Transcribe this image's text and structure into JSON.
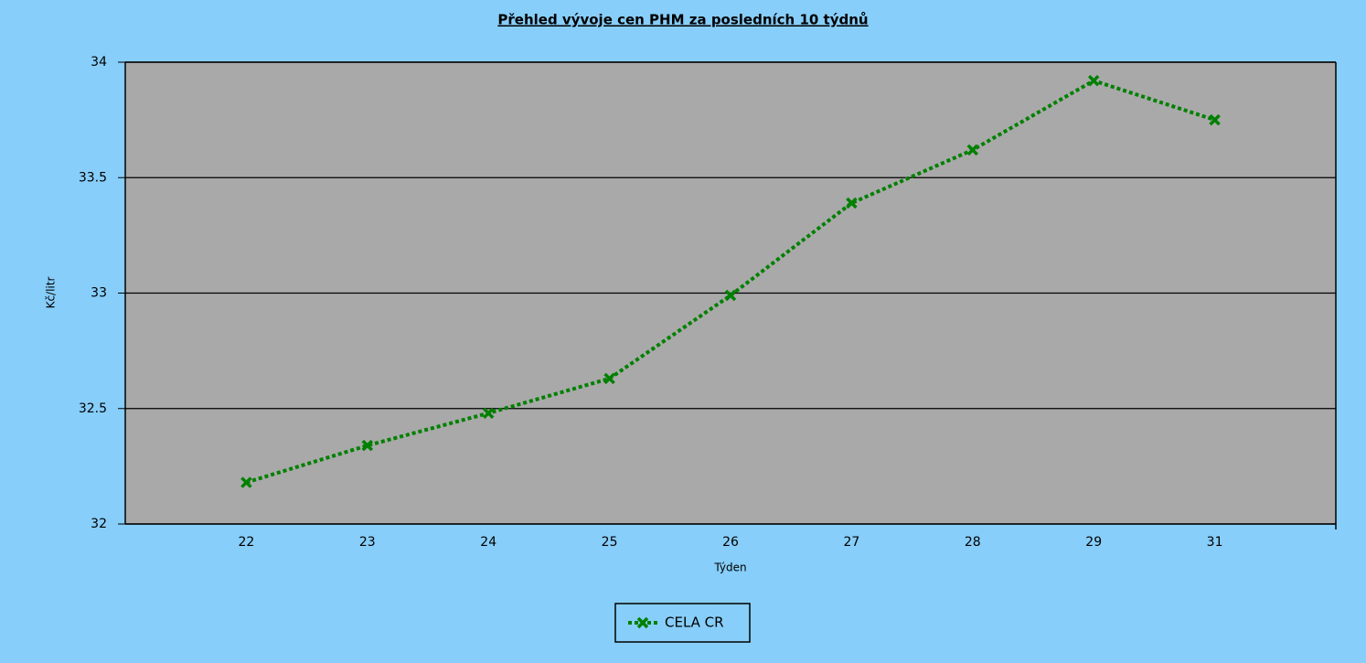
{
  "chart_data": {
    "type": "line",
    "title": "Přehled vývoje cen PHM za posledních 10 týdnů",
    "x_label": "Týden",
    "y_label": "Kč/litr",
    "categories": [
      "22",
      "23",
      "24",
      "25",
      "26",
      "27",
      "28",
      "29",
      "31"
    ],
    "series": [
      {
        "name": "CELA CR",
        "color": "#008000",
        "values": [
          32.18,
          32.34,
          32.48,
          32.63,
          32.99,
          33.39,
          33.62,
          33.92,
          33.75
        ]
      }
    ],
    "ylim": [
      32,
      34
    ],
    "yticks": [
      32,
      32.5,
      33,
      33.5,
      34
    ],
    "grid": true,
    "legend": "bottom"
  }
}
